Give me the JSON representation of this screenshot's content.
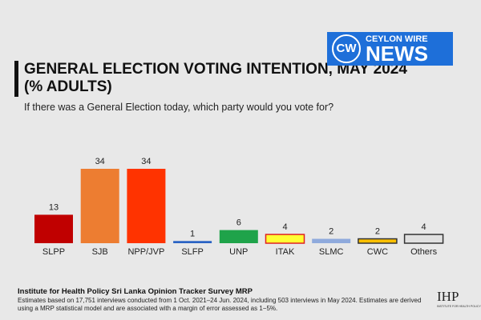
{
  "chart_data": {
    "type": "bar",
    "title": "GENERAL ELECTION VOTING INTENTION, MAY 2024 (% ADULTS)",
    "subtitle": "If there was a General Election today, which party would you vote for?",
    "categories": [
      "SLPP",
      "SJB",
      "NPP/JVP",
      "SLFP",
      "UNP",
      "ITAK",
      "SLMC",
      "CWC",
      "Others"
    ],
    "values": [
      13,
      34,
      34,
      1,
      6,
      4,
      2,
      2,
      4
    ],
    "colors": [
      "#c00000",
      "#ed7d31",
      "#ff3300",
      "#2a63c4",
      "#1fa34a",
      "#ffff33",
      "#8faadc",
      "#ffc000",
      "#e0e0e0"
    ],
    "edge_colors": [
      null,
      null,
      null,
      null,
      null,
      "#e02020",
      null,
      "#333333",
      "#333333"
    ],
    "source_title": "Institute for Health Policy Sri Lanka Opinion Tracker Survey MRP",
    "source_notes": [
      "Estimates based on 17,751 interviews conducted from 1 Oct. 2021–24 Jun. 2024, including 503 interviews in May 2024. Estimates are derived",
      "using a MRP statistical model and are associated with a margin of error assessed as 1−5%."
    ]
  },
  "logo": {
    "mark": "CW",
    "brand": "CEYLON WIRE",
    "word": "NEWS"
  },
  "ihp_logo": {
    "mark": "IHP",
    "name": "INSTITUTE FOR HEALTH POLICY"
  }
}
